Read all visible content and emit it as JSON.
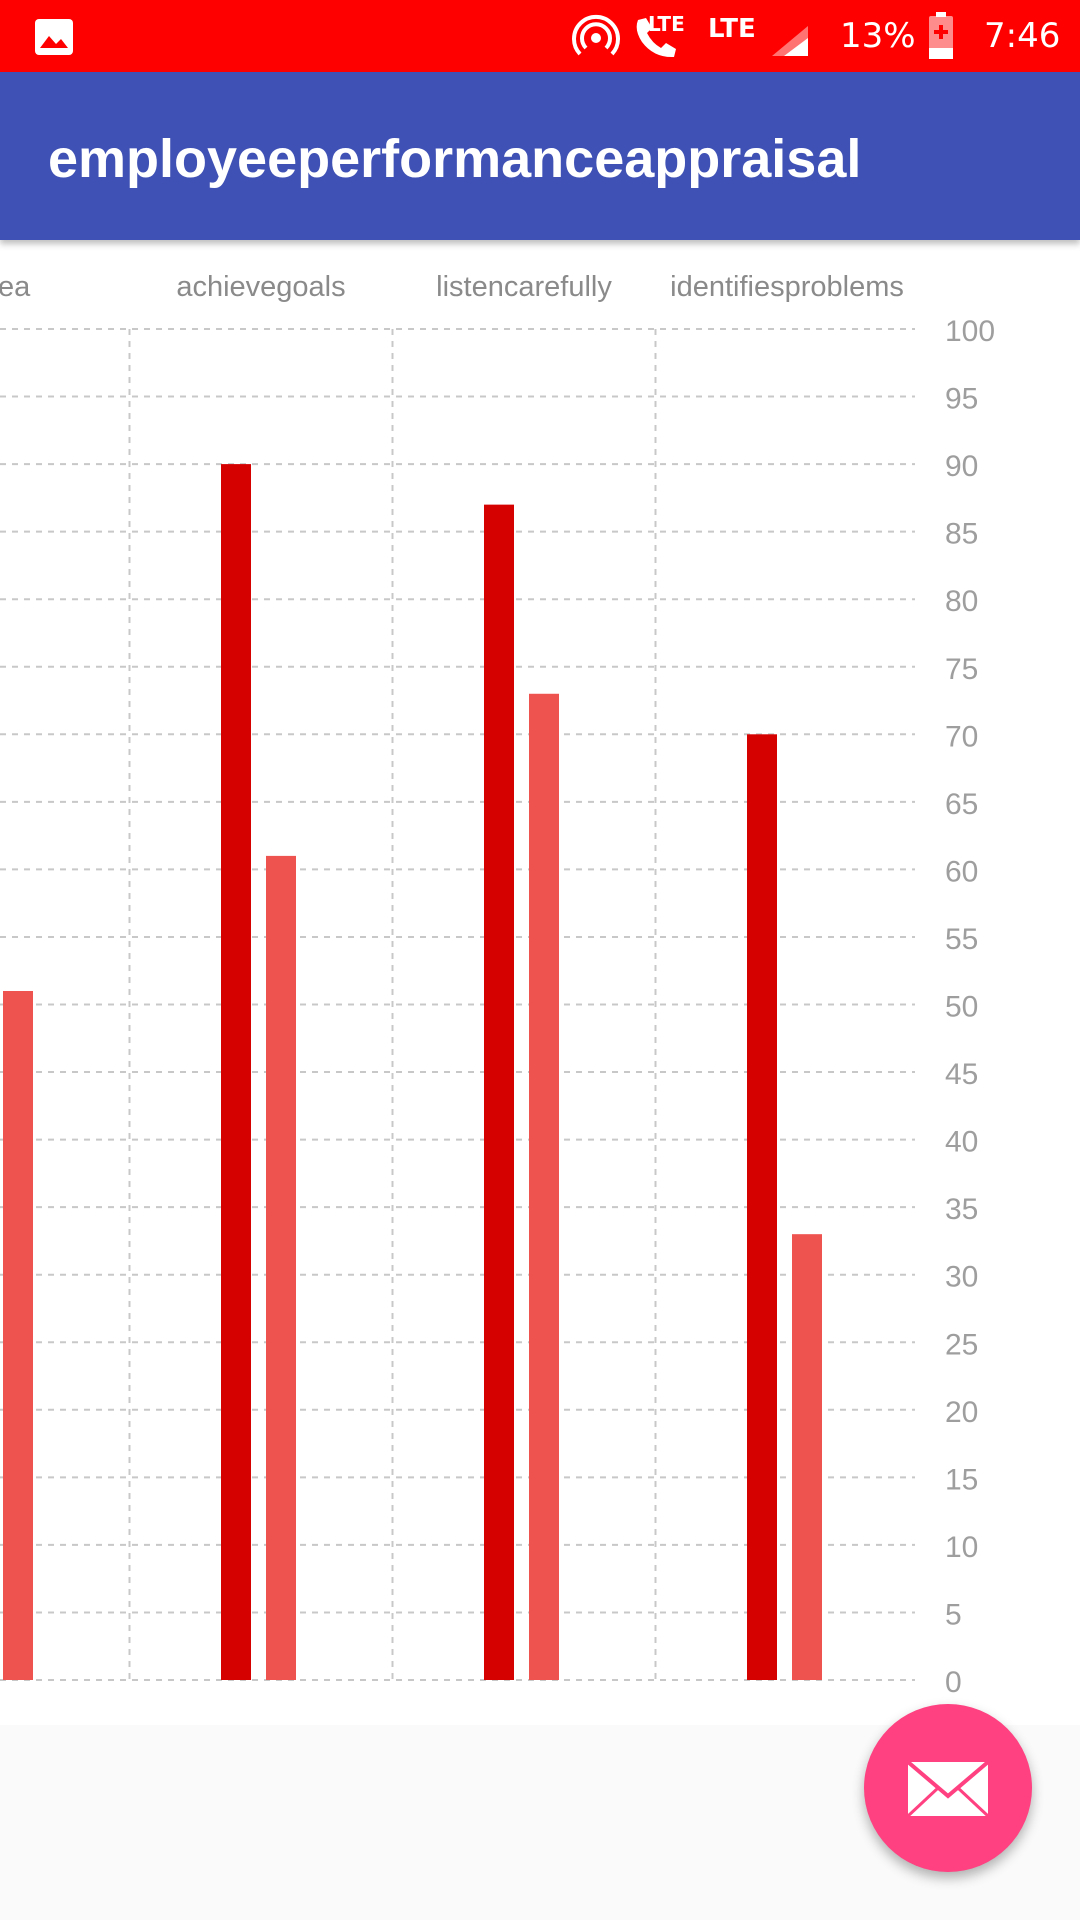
{
  "status_bar": {
    "lte_small": "LTE",
    "lte_label": "LTE",
    "battery_percent": "13%",
    "time": "7:46",
    "icons": [
      "gallery-icon",
      "hotspot-icon",
      "call-icon",
      "signal-icon",
      "battery-icon"
    ]
  },
  "app_bar": {
    "title": "employeeperformanceappraisal",
    "color": "#3f51b5"
  },
  "fab": {
    "icon": "email-icon",
    "color": "#ff4081"
  },
  "chart_data": {
    "type": "bar",
    "categories": [
      "ea",
      "achievegoals",
      "listencarefully",
      "identifiesproblems"
    ],
    "series": [
      {
        "color": "#d50000",
        "values": [
          null,
          90,
          87,
          70
        ]
      },
      {
        "color": "#ef5350",
        "values": [
          51,
          61,
          73,
          33
        ]
      }
    ],
    "ylim": [
      0,
      100
    ],
    "yticks": [
      0,
      5,
      10,
      15,
      20,
      25,
      30,
      35,
      40,
      45,
      50,
      55,
      60,
      65,
      70,
      75,
      80,
      85,
      90,
      95,
      100
    ],
    "y_axis_position": "right",
    "grid": true
  }
}
